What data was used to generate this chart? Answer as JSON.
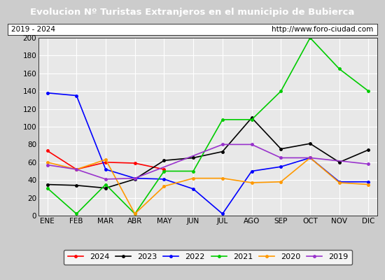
{
  "title": "Evolucion Nº Turistas Extranjeros en el municipio de Bubierca",
  "subtitle_left": "2019 - 2024",
  "subtitle_right": "http://www.foro-ciudad.com",
  "title_bg_color": "#4472c4",
  "title_text_color": "#ffffff",
  "plot_bg_color": "#e8e8e8",
  "outer_bg_color": "#cccccc",
  "months": [
    "ENE",
    "FEB",
    "MAR",
    "ABR",
    "MAY",
    "JUN",
    "JUL",
    "AGO",
    "SEP",
    "OCT",
    "NOV",
    "DIC"
  ],
  "ylim": [
    0,
    200
  ],
  "yticks": [
    0,
    20,
    40,
    60,
    80,
    100,
    120,
    140,
    160,
    180,
    200
  ],
  "series": {
    "2024": {
      "color": "#ff0000",
      "data": [
        73,
        52,
        60,
        59,
        52,
        null,
        null,
        null,
        null,
        null,
        null,
        null
      ]
    },
    "2023": {
      "color": "#000000",
      "data": [
        35,
        34,
        31,
        41,
        62,
        65,
        72,
        110,
        75,
        81,
        60,
        74
      ]
    },
    "2022": {
      "color": "#0000ff",
      "data": [
        138,
        135,
        52,
        42,
        41,
        30,
        2,
        50,
        55,
        65,
        38,
        38
      ]
    },
    "2021": {
      "color": "#00cc00",
      "data": [
        31,
        2,
        35,
        2,
        50,
        50,
        108,
        108,
        140,
        200,
        165,
        140
      ]
    },
    "2020": {
      "color": "#ff9900",
      "data": [
        60,
        52,
        63,
        2,
        33,
        42,
        42,
        37,
        38,
        65,
        37,
        35
      ]
    },
    "2019": {
      "color": "#9933cc",
      "data": [
        57,
        52,
        41,
        42,
        null,
        null,
        80,
        80,
        65,
        65,
        null,
        58
      ]
    }
  },
  "legend_order": [
    "2024",
    "2023",
    "2022",
    "2021",
    "2020",
    "2019"
  ]
}
